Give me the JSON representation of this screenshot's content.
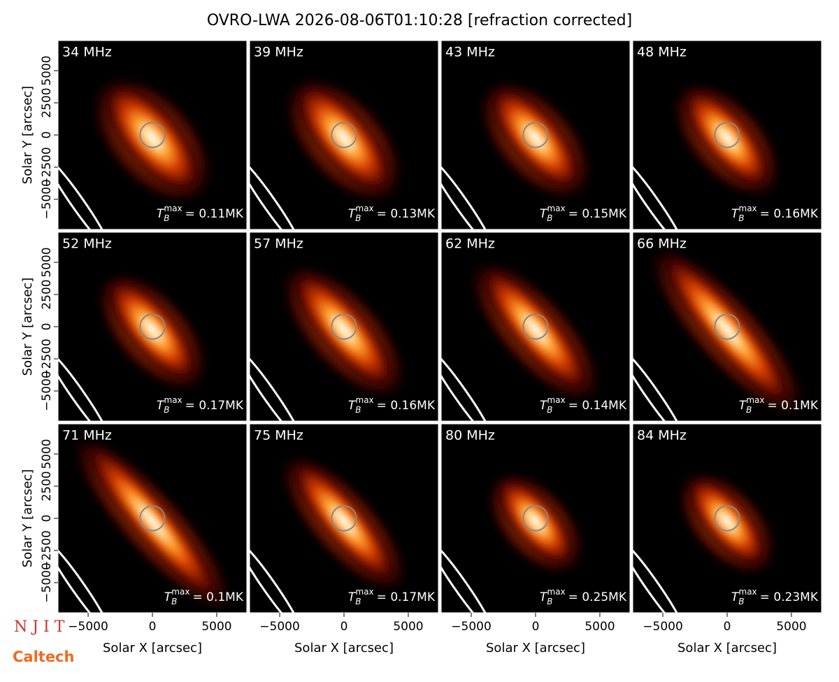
{
  "title": "OVRO-LWA 2026-08-06T01:10:28 [refraction corrected]",
  "logos": {
    "njit": "N J I T",
    "caltech": "Caltech"
  },
  "tb_symbol": {
    "base": "T",
    "sub": "B",
    "sup": "max"
  },
  "chart_data": [
    {
      "type": "image",
      "label": "34 MHz",
      "tb_max": "= 0.11MK",
      "xlim": [
        -7340,
        7340
      ],
      "ylim": [
        -7340,
        7340
      ],
      "ylabel": "Solar Y [arcsec]",
      "yticks": [
        {
          "value": -5000,
          "label": "−5000"
        },
        {
          "value": -2500,
          "label": "−2500"
        },
        0,
        2500,
        5000
      ]
    },
    {
      "type": "image",
      "label": "39 MHz",
      "tb_max": "= 0.13MK",
      "xlim": [
        -7340,
        7340
      ],
      "ylim": [
        -7340,
        7340
      ]
    },
    {
      "type": "image",
      "label": "43 MHz",
      "tb_max": "= 0.15MK",
      "xlim": [
        -7340,
        7340
      ],
      "ylim": [
        -7340,
        7340
      ]
    },
    {
      "type": "image",
      "label": "48 MHz",
      "tb_max": "= 0.16MK",
      "xlim": [
        -7340,
        7340
      ],
      "ylim": [
        -7340,
        7340
      ]
    },
    {
      "type": "image",
      "label": "52 MHz",
      "tb_max": "= 0.17MK",
      "xlim": [
        -7340,
        7340
      ],
      "ylim": [
        -7340,
        7340
      ],
      "ylabel": "Solar Y [arcsec]",
      "yticks": [
        {
          "value": -5000,
          "label": "−5000"
        },
        {
          "value": -2500,
          "label": "−2500"
        },
        0,
        2500,
        5000
      ]
    },
    {
      "type": "image",
      "label": "57 MHz",
      "tb_max": "= 0.16MK",
      "xlim": [
        -7340,
        7340
      ],
      "ylim": [
        -7340,
        7340
      ]
    },
    {
      "type": "image",
      "label": "62 MHz",
      "tb_max": "= 0.14MK",
      "xlim": [
        -7340,
        7340
      ],
      "ylim": [
        -7340,
        7340
      ]
    },
    {
      "type": "image",
      "label": "66 MHz",
      "tb_max": "= 0.1MK",
      "xlim": [
        -7340,
        7340
      ],
      "ylim": [
        -7340,
        7340
      ]
    },
    {
      "type": "image",
      "label": "71 MHz",
      "tb_max": "= 0.1MK",
      "xlim": [
        -7340,
        7340
      ],
      "ylim": [
        -7340,
        7340
      ],
      "ylabel": "Solar Y [arcsec]",
      "xlabel": "Solar X [arcsec]",
      "yticks": [
        {
          "value": -5000,
          "label": "−5000"
        },
        {
          "value": -2500,
          "label": "−2500"
        },
        0,
        2500,
        5000
      ],
      "xticks": [
        {
          "value": -5000,
          "label": "−5000"
        },
        0,
        5000
      ]
    },
    {
      "type": "image",
      "label": "75 MHz",
      "tb_max": "= 0.17MK",
      "xlim": [
        -7340,
        7340
      ],
      "ylim": [
        -7340,
        7340
      ],
      "xlabel": "Solar X [arcsec]",
      "xticks": [
        {
          "value": -5000,
          "label": "−5000"
        },
        0,
        5000
      ]
    },
    {
      "type": "image",
      "label": "80 MHz",
      "tb_max": "= 0.25MK",
      "xlim": [
        -7340,
        7340
      ],
      "ylim": [
        -7340,
        7340
      ],
      "xlabel": "Solar X [arcsec]",
      "xticks": [
        {
          "value": -5000,
          "label": "−5000"
        },
        0,
        5000
      ]
    },
    {
      "type": "image",
      "label": "84 MHz",
      "tb_max": "= 0.23MK",
      "xlim": [
        -7340,
        7340
      ],
      "ylim": [
        -7340,
        7340
      ],
      "xlabel": "Solar X [arcsec]",
      "xticks": [
        {
          "value": -5000,
          "label": "−5000"
        },
        0,
        5000
      ]
    }
  ]
}
